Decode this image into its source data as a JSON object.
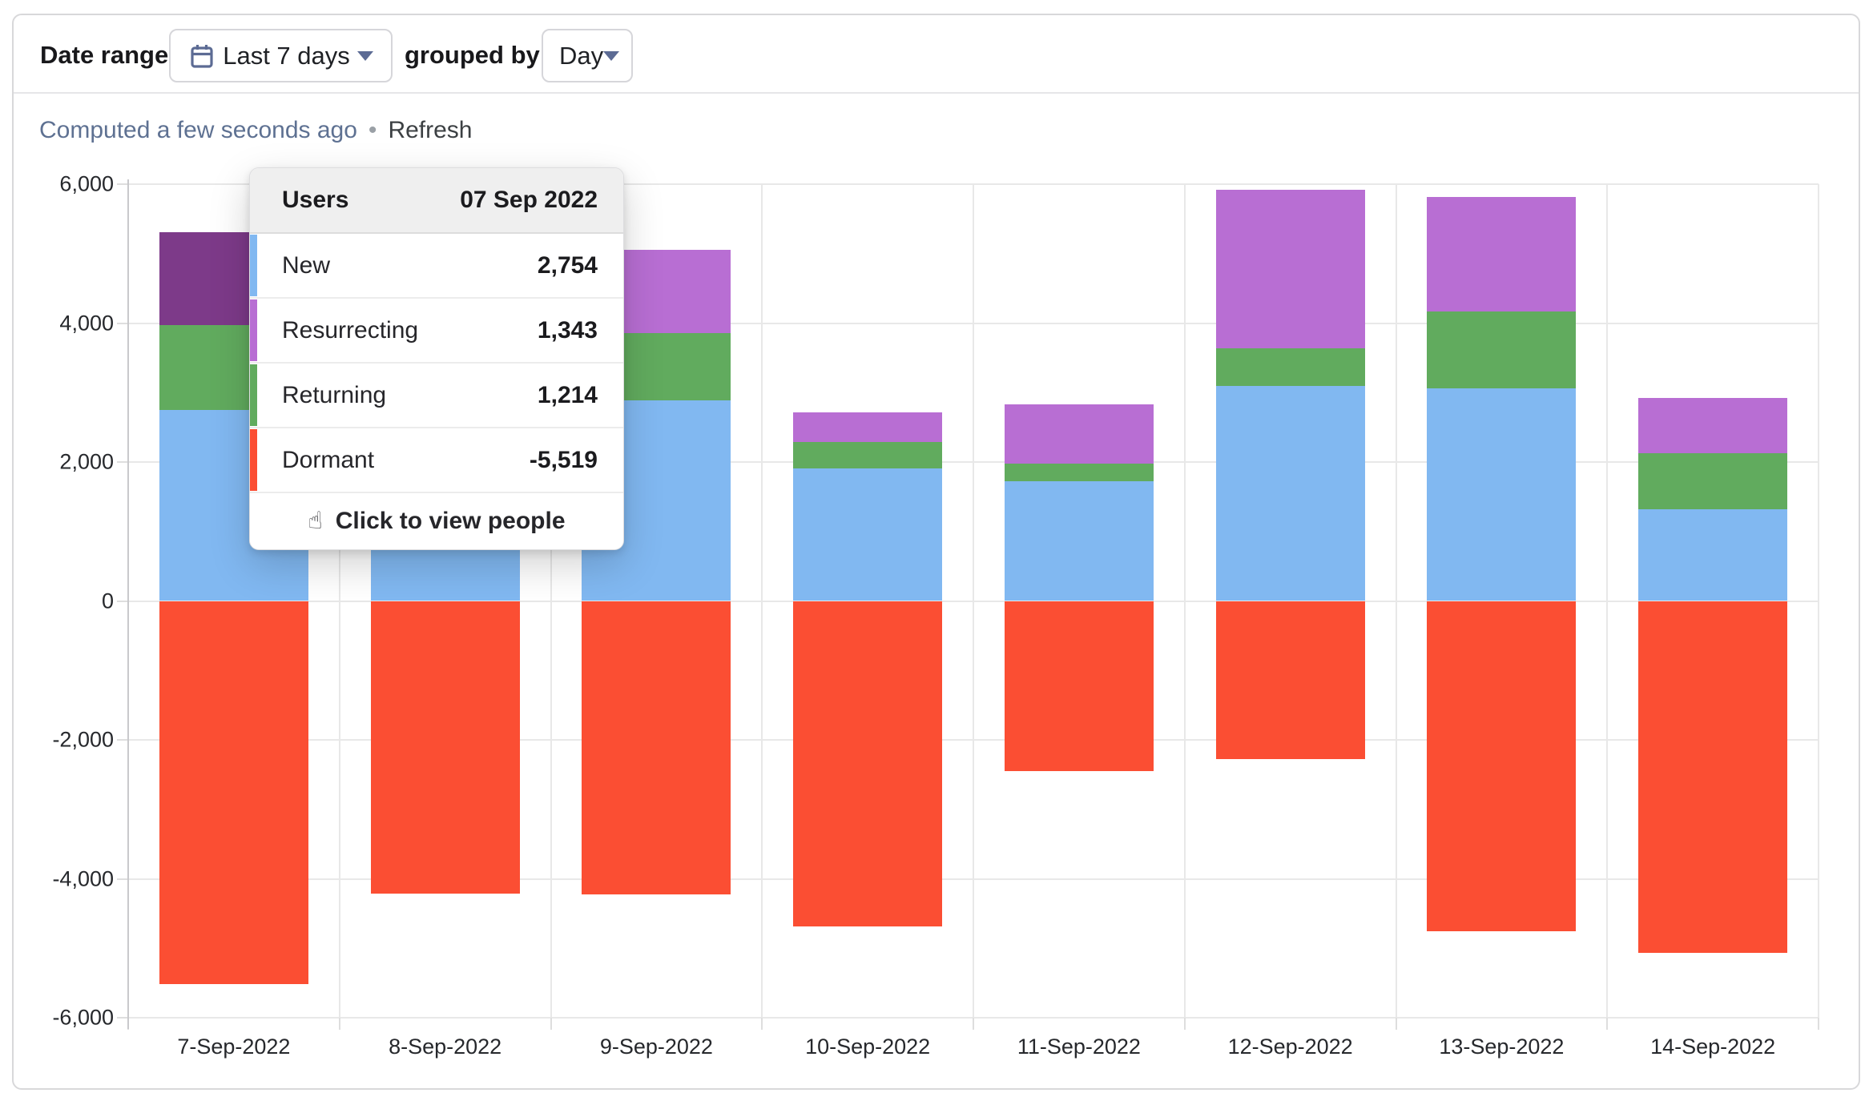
{
  "header": {
    "date_range_label": "Date range",
    "date_range_value": "Last 7 days",
    "grouped_by_label": "grouped by",
    "grouped_by_value": "Day"
  },
  "status": {
    "computed_text": "Computed a few seconds ago",
    "separator": "•",
    "refresh_label": "Refresh"
  },
  "tooltip": {
    "title": "Users",
    "date": "07 Sep 2022",
    "rows": [
      {
        "label": "New",
        "value": "2,754",
        "color": "#81b8f1"
      },
      {
        "label": "Resurrecting",
        "value": "1,343",
        "color": "#b86ed3"
      },
      {
        "label": "Returning",
        "value": "1,214",
        "color": "#61ab5e"
      },
      {
        "label": "Dormant",
        "value": "-5,519",
        "color": "#fb4e33"
      }
    ],
    "hand_icon": "☝",
    "footer": "Click to view people"
  },
  "chart_data": {
    "type": "bar",
    "stacked": true,
    "title": "",
    "xlabel": "",
    "ylabel": "",
    "ylim": [
      -6000,
      6000
    ],
    "grid": true,
    "legend_position": "none",
    "categories": [
      "7-Sep-2022",
      "8-Sep-2022",
      "9-Sep-2022",
      "10-Sep-2022",
      "11-Sep-2022",
      "12-Sep-2022",
      "13-Sep-2022",
      "14-Sep-2022"
    ],
    "series": [
      {
        "name": "New",
        "color": "#81b8f1",
        "values": [
          2754,
          2600,
          2890,
          1910,
          1725,
          3090,
          3055,
          1320
        ]
      },
      {
        "name": "Returning",
        "color": "#61ab5e",
        "values": [
          1214,
          900,
          970,
          375,
          250,
          550,
          1110,
          805
        ]
      },
      {
        "name": "Resurrecting",
        "color": "#b86ed3",
        "hover_color": "#7d3a89",
        "values": [
          1343,
          900,
          1195,
          435,
          850,
          2285,
          1655,
          800
        ]
      },
      {
        "name": "Dormant",
        "color": "#fb4e33",
        "values": [
          -5519,
          -4210,
          -4230,
          -4690,
          -2450,
          -2280,
          -4760,
          -5070
        ]
      }
    ],
    "hovered": {
      "category_index": 0,
      "series": "Resurrecting"
    },
    "y_ticks": [
      6000,
      4000,
      2000,
      0,
      -2000,
      -4000,
      -6000
    ],
    "y_tick_labels": [
      "6,000",
      "4,000",
      "2,000",
      "0",
      "-2,000",
      "-4,000",
      "-6,000"
    ]
  }
}
